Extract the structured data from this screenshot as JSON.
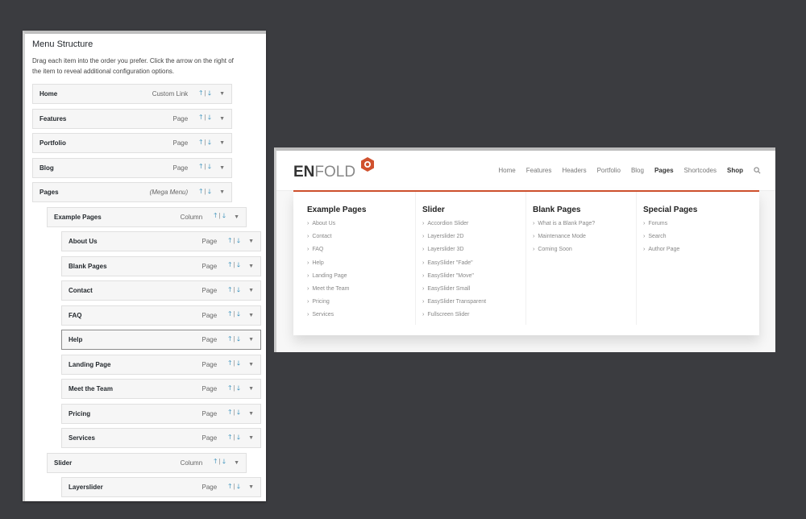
{
  "menu_structure": {
    "title": "Menu Structure",
    "description": "Drag each item into the order you prefer. Click the arrow on the right of the item to reveal additional configuration options.",
    "items": [
      {
        "title": "Home",
        "type": "Custom Link",
        "level": 0
      },
      {
        "title": "Features",
        "type": "Page",
        "level": 0
      },
      {
        "title": "Portfolio",
        "type": "Page",
        "level": 0
      },
      {
        "title": "Blog",
        "type": "Page",
        "level": 0
      },
      {
        "title": "Pages",
        "type": "(Mega Menu)",
        "level": 0,
        "italic": true
      },
      {
        "title": "Example Pages",
        "type": "Column",
        "level": 1
      },
      {
        "title": "About Us",
        "type": "Page",
        "level": 2
      },
      {
        "title": "Blank Pages",
        "type": "Page",
        "level": 2
      },
      {
        "title": "Contact",
        "type": "Page",
        "level": 2
      },
      {
        "title": "FAQ",
        "type": "Page",
        "level": 2
      },
      {
        "title": "Help",
        "type": "Page",
        "level": 2,
        "selected": true
      },
      {
        "title": "Landing Page",
        "type": "Page",
        "level": 2
      },
      {
        "title": "Meet the Team",
        "type": "Page",
        "level": 2
      },
      {
        "title": "Pricing",
        "type": "Page",
        "level": 2
      },
      {
        "title": "Services",
        "type": "Page",
        "level": 2
      },
      {
        "title": "Slider",
        "type": "Column",
        "level": 1
      },
      {
        "title": "Layerslider",
        "type": "Page",
        "level": 2
      }
    ],
    "arrow_up": "🡑",
    "arrow_sep": "|",
    "arrow_down": "🡓",
    "toggle": "▼"
  },
  "site": {
    "logo_en": "EN",
    "logo_fold": "FOLD",
    "accent": "#d0512e",
    "nav": [
      {
        "label": "Home"
      },
      {
        "label": "Features"
      },
      {
        "label": "Headers"
      },
      {
        "label": "Portfolio"
      },
      {
        "label": "Blog"
      },
      {
        "label": "Pages",
        "active": true
      },
      {
        "label": "Shortcodes"
      },
      {
        "label": "Shop",
        "bold": true
      }
    ],
    "search_icon": "search-icon",
    "mega_menu": [
      {
        "heading": "Example Pages",
        "links": [
          "About Us",
          "Contact",
          "FAQ",
          "Help",
          "Landing Page",
          "Meet the Team",
          "Pricing",
          "Services"
        ]
      },
      {
        "heading": "Slider",
        "links": [
          "Accordion Slider",
          "Layerslider 2D",
          "Layerslider 3D",
          "EasySlider \"Fade\"",
          "EasySlider \"Move\"",
          "EasySlider Small",
          "EasySlider Transparent",
          "Fullscreen Slider"
        ]
      },
      {
        "heading": "Blank Pages",
        "links": [
          "What is a Blank Page?",
          "Maintenance Mode",
          "Coming Soon"
        ]
      },
      {
        "heading": "Special Pages",
        "links": [
          "Forums",
          "Search",
          "Author Page"
        ]
      }
    ]
  }
}
